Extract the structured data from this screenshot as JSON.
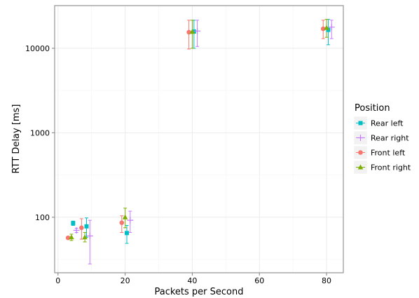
{
  "chart_data": {
    "type": "scatter",
    "title": "",
    "xlabel": "Packets per Second",
    "ylabel": "RTT Delay [ms]",
    "xlim": [
      -1,
      85
    ],
    "ylim": [
      22,
      32000
    ],
    "y_scale": "log",
    "x_ticks": [
      0,
      20,
      40,
      60,
      80
    ],
    "x_tick_labels": [
      "0",
      "20",
      "40",
      "60",
      "80"
    ],
    "y_ticks": [
      100,
      1000,
      10000
    ],
    "y_tick_labels": [
      "100",
      "1000",
      "10000"
    ],
    "grid": true,
    "legend": {
      "title": "Position",
      "placement": "right"
    },
    "series": [
      {
        "name": "Rear left",
        "color": "#00bfc4",
        "marker": "square",
        "points": [
          {
            "x": 4.5,
            "y": 85,
            "lo": 80,
            "hi": 90
          },
          {
            "x": 8.5,
            "y": 78,
            "lo": 58,
            "hi": 98
          },
          {
            "x": 20.5,
            "y": 65,
            "lo": 49,
            "hi": 80
          },
          {
            "x": 40.5,
            "y": 15800,
            "lo": 10000,
            "hi": 21500
          },
          {
            "x": 80.5,
            "y": 16500,
            "lo": 11000,
            "hi": 22000
          }
        ]
      },
      {
        "name": "Rear right",
        "color": "#c77cff",
        "marker": "plus",
        "points": [
          {
            "x": 5.5,
            "y": 70,
            "lo": 66,
            "hi": 74
          },
          {
            "x": 9.5,
            "y": 60,
            "lo": 28,
            "hi": 92
          },
          {
            "x": 21.5,
            "y": 92,
            "lo": 66,
            "hi": 118
          },
          {
            "x": 41.5,
            "y": 16000,
            "lo": 10500,
            "hi": 21500
          },
          {
            "x": 81.5,
            "y": 17800,
            "lo": 13000,
            "hi": 21500
          }
        ]
      },
      {
        "name": "Front left",
        "color": "#f8766d",
        "marker": "circle",
        "points": [
          {
            "x": 3.0,
            "y": 57,
            "lo": 55,
            "hi": 59
          },
          {
            "x": 7.0,
            "y": 75,
            "lo": 55,
            "hi": 96
          },
          {
            "x": 19.0,
            "y": 86,
            "lo": 66,
            "hi": 104
          },
          {
            "x": 39.0,
            "y": 15500,
            "lo": 9800,
            "hi": 21500
          },
          {
            "x": 79.0,
            "y": 17000,
            "lo": 13000,
            "hi": 21500
          }
        ]
      },
      {
        "name": "Front right",
        "color": "#7cae00",
        "marker": "triangle",
        "points": [
          {
            "x": 4.0,
            "y": 58,
            "lo": 53,
            "hi": 63
          },
          {
            "x": 8.0,
            "y": 58,
            "lo": 51,
            "hi": 66
          },
          {
            "x": 20.0,
            "y": 100,
            "lo": 75,
            "hi": 128
          },
          {
            "x": 40.0,
            "y": 15700,
            "lo": 10000,
            "hi": 21500
          },
          {
            "x": 80.0,
            "y": 17500,
            "lo": 13500,
            "hi": 22000
          }
        ]
      }
    ]
  }
}
